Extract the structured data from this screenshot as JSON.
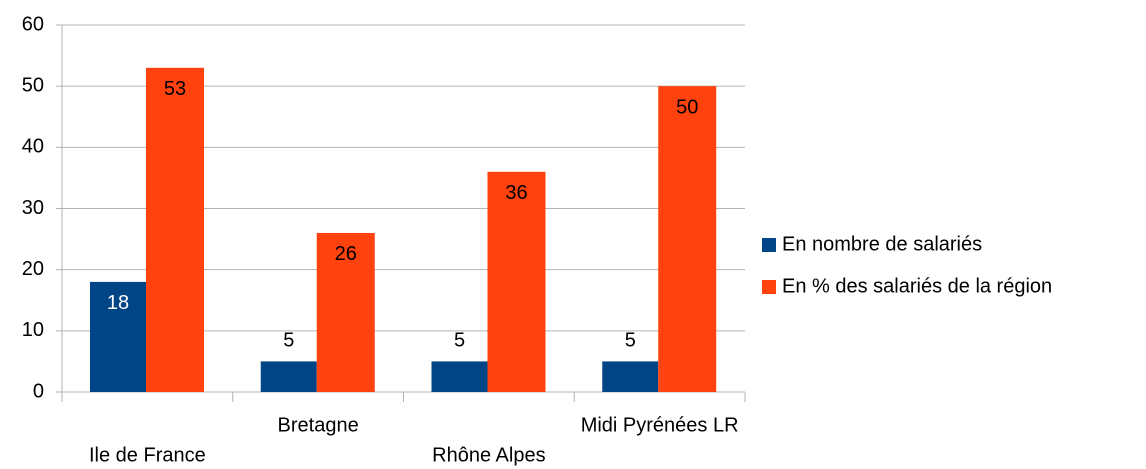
{
  "chart_data": {
    "type": "bar",
    "categories": [
      "Ile de France",
      "Bretagne",
      "Rhône Alpes",
      "Midi Pyrénées LR"
    ],
    "series": [
      {
        "name": "En nombre de salariés",
        "color": "#004586",
        "values": [
          18,
          5,
          5,
          5
        ]
      },
      {
        "name": "En % des salariés de la région",
        "color": "#ff420e",
        "values": [
          53,
          26,
          36,
          50
        ]
      }
    ],
    "ylim": [
      0,
      60
    ],
    "yticks": [
      0,
      10,
      20,
      30,
      40,
      50,
      60
    ],
    "grid": true,
    "legend": "right"
  }
}
